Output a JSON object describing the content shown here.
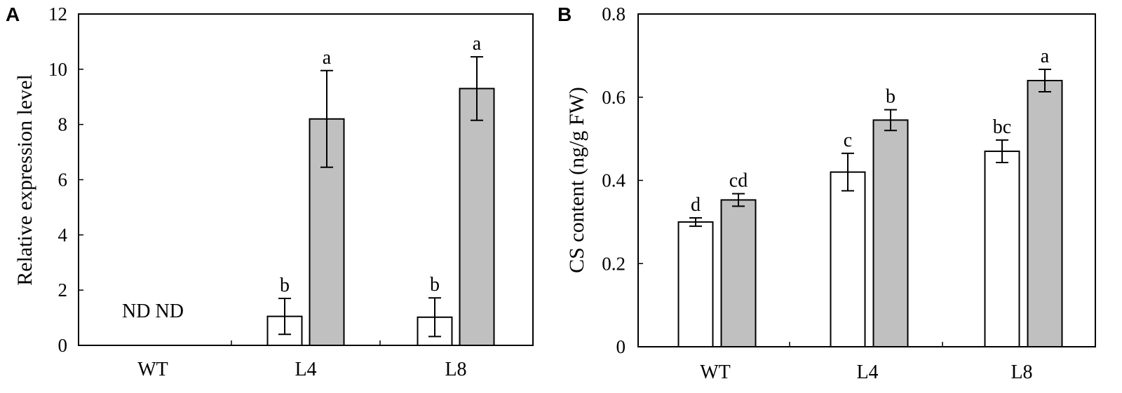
{
  "chart_data": [
    {
      "panel_label": "A",
      "type": "bar",
      "ylabel": "Relative expression level",
      "xlabel": "",
      "ylim": [
        0,
        12
      ],
      "yticks": [
        "0",
        "2",
        "4",
        "6",
        "8",
        "10",
        "12"
      ],
      "categories": [
        "WT",
        "L4",
        "L8"
      ],
      "series": [
        {
          "name": "white",
          "color": "#ffffff",
          "values": [
            null,
            1.05,
            1.02
          ],
          "errors": [
            null,
            0.65,
            0.7
          ],
          "labels": [
            "",
            "b",
            "b"
          ]
        },
        {
          "name": "gray",
          "color": "#c0c0c0",
          "values": [
            null,
            8.2,
            9.3
          ],
          "errors": [
            null,
            1.75,
            1.15
          ],
          "labels": [
            "",
            "a",
            "a"
          ]
        }
      ],
      "annotations": [
        {
          "category": "WT",
          "text": "ND ND"
        }
      ]
    },
    {
      "panel_label": "B",
      "type": "bar",
      "ylabel": "CS content (ng/g FW)",
      "xlabel": "",
      "ylim": [
        0,
        0.8
      ],
      "yticks": [
        "0",
        "0.2",
        "0.4",
        "0.6",
        "0.8"
      ],
      "categories": [
        "WT",
        "L4",
        "L8"
      ],
      "series": [
        {
          "name": "white",
          "color": "#ffffff",
          "values": [
            0.3,
            0.42,
            0.47
          ],
          "errors": [
            0.01,
            0.045,
            0.027
          ],
          "labels": [
            "d",
            "c",
            "bc"
          ]
        },
        {
          "name": "gray",
          "color": "#c0c0c0",
          "values": [
            0.353,
            0.545,
            0.64
          ],
          "errors": [
            0.015,
            0.025,
            0.027
          ],
          "labels": [
            "cd",
            "b",
            "a"
          ]
        }
      ]
    }
  ]
}
